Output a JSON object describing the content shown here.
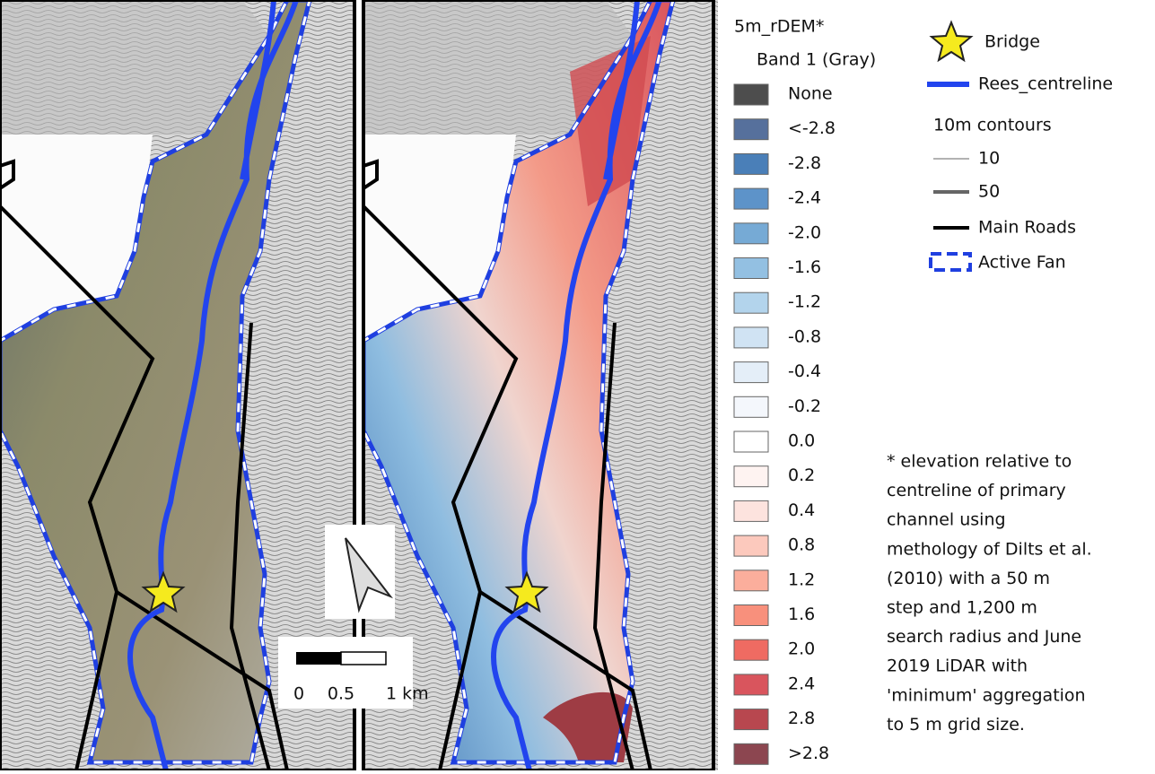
{
  "legend": {
    "title": "5m_rDEM*",
    "subtitle": "Band 1 (Gray)",
    "classes": [
      {
        "label": "None",
        "color": "#4d4d4d"
      },
      {
        "label": "<-2.8",
        "color": "#56709c"
      },
      {
        "label": "-2.8",
        "color": "#4a7fb8"
      },
      {
        "label": "-2.4",
        "color": "#5d93c9"
      },
      {
        "label": "-2.0",
        "color": "#76aad5"
      },
      {
        "label": "-1.6",
        "color": "#93c0e2"
      },
      {
        "label": "-1.2",
        "color": "#b3d4ec"
      },
      {
        "label": "-0.8",
        "color": "#d0e3f3"
      },
      {
        "label": "-0.4",
        "color": "#e4eef8"
      },
      {
        "label": "-0.2",
        "color": "#f4f7fc"
      },
      {
        "label": "0.0",
        "color": "#ffffff"
      },
      {
        "label": "0.2",
        "color": "#fef3f1"
      },
      {
        "label": "0.4",
        "color": "#fde3de"
      },
      {
        "label": "0.8",
        "color": "#fcc9bd"
      },
      {
        "label": "1.2",
        "color": "#fbae9c"
      },
      {
        "label": "1.6",
        "color": "#f8907c"
      },
      {
        "label": "2.0",
        "color": "#ef6b62"
      },
      {
        "label": "2.4",
        "color": "#d9555d"
      },
      {
        "label": "2.8",
        "color": "#b8474f"
      },
      {
        "label": ">2.8",
        "color": "#8c4650"
      }
    ]
  },
  "layers": {
    "bridge": "Bridge",
    "centreline": "Rees_centreline",
    "contours_title": "10m contours",
    "contour_minor": "10",
    "contour_major": "50",
    "roads": "Main Roads",
    "fan": "Active Fan"
  },
  "scale_bar": {
    "labels": [
      "0",
      "0.5",
      "1 km"
    ]
  },
  "footnote": [
    "* elevation relative to",
    "centreline of primary",
    "channel using",
    "methology of Dilts et al.",
    "(2010) with a 50 m",
    "step and 1,200 m",
    "search radius and June",
    "2019 LiDAR with",
    "'minimum' aggregation",
    "to 5 m grid size."
  ]
}
